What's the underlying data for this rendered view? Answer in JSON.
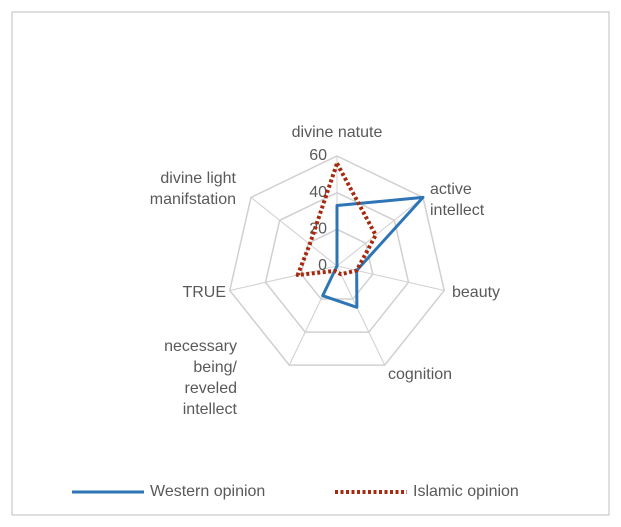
{
  "chart_data": {
    "type": "radar",
    "categories": [
      "divine natute",
      "active intellect",
      "beauty",
      "cognition",
      "necessary being/reveled intellect",
      "TRUE",
      "divine light manifstation"
    ],
    "series": [
      {
        "name": "Western opinion",
        "color": "#2e75b6",
        "dash": "solid",
        "values": [
          33,
          60,
          11,
          25,
          18,
          0,
          0
        ]
      },
      {
        "name": "Islamic opinion",
        "color": "#a52a0f",
        "dash": "dotted",
        "values": [
          56,
          27,
          11,
          5,
          3,
          22,
          19
        ]
      }
    ],
    "ylim": [
      0,
      60
    ],
    "yticks": [
      0,
      20,
      40,
      60
    ],
    "grid": true,
    "legend": "bottom"
  }
}
